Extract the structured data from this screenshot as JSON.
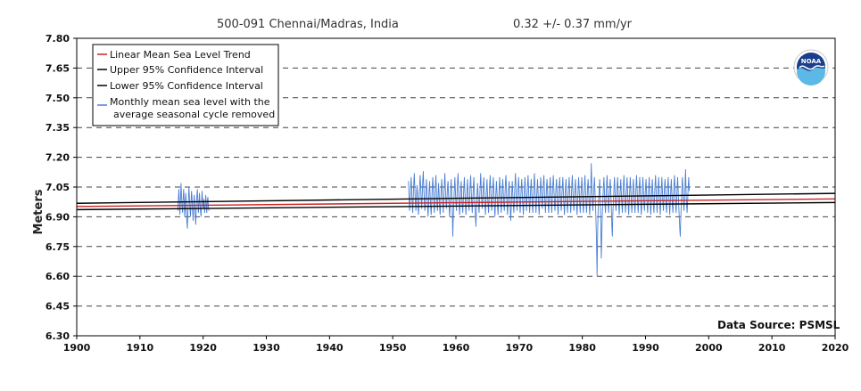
{
  "chart_data": {
    "type": "line",
    "title": "500-091 Chennai/Madras, India",
    "trend_label": "0.32 +/-  0.37 mm/yr",
    "ylabel": "Meters",
    "xlabel": "",
    "xlim": [
      1900,
      2020
    ],
    "ylim": [
      6.3,
      7.8
    ],
    "x_ticks": [
      "1900",
      "1910",
      "1920",
      "1930",
      "1940",
      "1950",
      "1960",
      "1970",
      "1980",
      "1990",
      "2000",
      "2010",
      "2020"
    ],
    "y_ticks": [
      "7.80",
      "7.65",
      "7.50",
      "7.35",
      "7.20",
      "7.05",
      "6.90",
      "6.75",
      "6.60",
      "6.45",
      "6.30"
    ],
    "grid": "dashed horizontal",
    "legend_position": "top-left",
    "data_source": "Data Source: PSMSL",
    "logo_text": "NOAA",
    "series": [
      {
        "name": "Linear Mean Sea Level Trend",
        "color": "#cc2222",
        "x": [
          1900,
          2020
        ],
        "y": [
          6.952,
          6.99
        ]
      },
      {
        "name": "Upper 95% Confidence Interval",
        "color": "#000000",
        "x": [
          1900,
          2020
        ],
        "y": [
          6.968,
          7.018
        ]
      },
      {
        "name": "Lower 95% Confidence Interval",
        "color": "#000000",
        "x": [
          1900,
          2020
        ],
        "y": [
          6.936,
          6.972
        ]
      },
      {
        "name": "Monthly mean sea level with the",
        "name_line2": "average seasonal cycle removed",
        "color": "#4a7fd4",
        "segments": [
          {
            "start": 1916.0,
            "values": [
              6.93,
              6.99,
              7.04,
              6.97,
              6.91,
              6.98,
              7.07,
              7.01,
              6.95,
              6.92,
              6.99,
              7.04,
              6.98,
              6.9,
              6.95,
              7.02,
              6.97,
              6.88,
              6.84,
              6.92,
              6.98,
              7.05,
              7.0,
              6.94,
              6.9,
              6.97,
              7.03,
              6.99,
              6.93,
              6.88,
              6.95,
              7.01,
              6.97,
              6.91,
              6.86,
              6.94,
              7.0,
              7.04,
              6.98,
              6.92,
              6.96,
              7.02,
              6.97,
              6.93,
              6.9,
              6.97,
              7.03,
              6.98,
              6.94,
              6.99,
              6.95,
              6.92,
              6.97,
              7.01,
              6.96,
              6.92,
              6.98,
              7.0,
              6.95,
              6.93
            ]
          },
          {
            "start": 1952.5,
            "values": [
              7.08,
              7.0,
              6.93,
              6.98,
              7.05,
              7.1,
              7.03,
              6.96,
              6.92,
              7.0,
              7.07,
              7.12,
              7.04,
              6.97,
              6.93,
              6.99,
              7.06,
              7.02,
              6.95,
              6.91,
              6.98,
              7.05,
              7.11,
              7.06,
              6.99,
              6.94,
              7.0,
              7.08,
              7.13,
              7.05,
              6.98,
              6.93,
              6.97,
              7.04,
              7.09,
              7.02,
              6.96,
              6.9,
              6.96,
              7.03,
              7.08,
              7.01,
              6.95,
              6.91,
              6.97,
              7.05,
              7.1,
              7.04,
              6.97,
              6.92,
              6.98,
              7.06,
              7.11,
              7.03,
              6.96,
              6.93,
              7.0,
              7.07,
              7.02,
              6.95,
              6.91,
              6.97,
              7.04,
              7.09,
              7.03,
              6.97,
              6.92,
              6.99,
              7.06,
              7.12,
              7.05,
              6.98,
              6.94,
              6.99,
              7.05,
              7.08,
              7.01,
              6.95,
              6.9,
              6.96,
              7.03,
              7.09,
              7.02,
              6.96,
              6.8,
              6.9,
              6.97,
              7.04,
              7.1,
              7.03,
              6.97,
              6.93,
              7.0,
              7.07,
              7.12,
              7.04,
              6.97,
              6.91,
              6.96,
              7.03,
              7.08,
              7.01,
              6.95,
              6.92,
              6.98,
              7.05,
              7.1,
              7.03,
              6.96,
              6.91,
              6.97,
              7.04,
              7.09,
              7.02,
              6.96,
              6.93,
              6.99,
              7.06,
              7.11,
              7.04,
              6.97,
              6.92,
              6.98,
              7.05,
              7.1,
              7.03,
              6.96,
              6.9,
              6.85,
              6.94,
              7.01,
              7.07,
              7.02,
              6.96,
              6.92,
              6.98,
              7.05,
              7.12,
              7.05,
              6.98,
              6.94,
              6.99,
              7.06,
              7.1,
              7.02,
              6.96,
              6.91,
              6.97,
              7.04,
              7.09,
              7.02,
              6.96,
              6.92,
              6.99,
              7.06,
              7.11,
              7.04,
              6.97,
              6.93,
              6.98,
              7.05,
              7.1,
              7.03,
              6.96,
              6.9,
              6.96,
              7.03,
              7.08,
              7.02,
              6.95,
              6.91,
              6.97,
              7.04,
              7.1,
              7.04,
              6.97,
              6.92,
              6.98,
              7.05,
              7.09,
              7.02,
              6.96,
              6.93,
              7.0,
              7.07,
              7.11,
              7.03,
              6.96,
              6.91,
              6.97,
              7.04,
              7.08,
              7.01,
              6.95,
              6.88,
              6.94,
              7.02,
              7.08,
              7.02,
              6.96,
              6.92,
              6.99,
              7.06,
              7.12,
              7.05,
              6.98,
              6.93,
              6.99,
              7.05,
              7.1,
              7.03,
              6.97,
              6.92,
              6.98,
              7.05,
              7.09,
              7.02,
              6.96,
              6.91,
              6.97,
              7.04,
              7.1,
              7.04,
              6.98,
              6.93,
              6.99,
              7.06,
              7.11,
              7.04,
              6.97,
              6.92,
              6.98,
              7.05,
              7.09,
              7.02,
              6.96,
              6.92,
              6.99,
              7.06,
              7.12,
              7.05,
              6.97,
              6.92,
              6.98,
              7.04,
              7.09,
              7.02,
              6.96,
              6.91,
              6.97,
              7.04,
              7.1,
              7.04,
              6.98,
              6.94,
              7.0,
              7.07,
              7.11,
              7.04,
              6.97,
              6.92,
              6.98,
              7.05,
              7.09,
              7.03,
              6.96,
              6.92,
              6.98,
              7.05,
              7.1,
              7.04,
              6.97,
              6.92,
              6.99,
              7.06,
              7.11,
              7.04,
              6.98,
              6.93,
              6.98,
              7.05,
              7.09,
              7.03,
              6.96,
              6.91,
              6.97,
              7.04,
              7.1,
              7.04,
              6.97,
              6.93,
              6.99,
              7.05,
              7.1,
              7.03,
              6.96,
              6.91,
              6.97,
              7.05,
              7.09,
              7.02,
              6.96,
              6.92,
              6.99,
              7.05,
              7.1,
              7.03,
              6.97,
              6.92,
              6.98,
              7.06,
              7.11,
              7.04,
              6.97,
              6.93,
              6.99,
              7.05,
              7.09,
              7.02,
              6.96,
              6.91,
              6.97,
              7.04,
              7.1,
              7.04,
              6.97,
              6.92,
              6.98,
              7.05,
              7.1,
              7.03,
              6.96,
              6.92,
              6.99,
              7.06,
              7.11,
              7.04,
              6.97,
              6.92,
              6.98,
              7.05,
              7.09,
              7.03,
              6.96,
              6.91,
              6.97,
              7.04,
              7.17,
              7.06,
              6.98,
              6.93,
              6.99,
              7.05,
              7.1,
              7.03,
              6.96,
              6.88,
              6.77,
              6.6,
              6.82,
              6.93,
              6.99,
              7.04,
              7.09,
              6.98,
              6.88,
              6.69,
              6.8,
              6.92,
              6.98,
              7.05,
              7.1,
              7.03,
              6.96,
              6.92,
              6.99,
              7.06,
              7.11,
              7.04,
              6.97,
              6.92,
              6.98,
              7.05,
              7.09,
              7.03,
              6.96,
              6.86,
              6.8,
              6.92,
              6.98,
              7.04,
              7.1,
              7.04,
              6.97,
              6.93,
              6.99,
              7.05,
              7.1,
              7.03,
              6.96,
              6.91,
              6.97,
              7.04,
              7.09,
              7.02,
              6.96,
              6.92,
              6.99,
              7.06,
              7.11,
              7.04,
              6.97,
              6.92,
              6.98,
              7.05,
              7.1,
              7.03,
              6.96,
              6.91,
              6.97,
              7.04,
              7.1,
              7.04,
              6.97,
              6.92,
              6.98,
              7.05,
              7.09,
              7.03,
              6.96,
              6.92,
              6.99,
              7.06,
              7.11,
              7.04,
              6.97,
              6.92,
              6.98,
              7.05,
              7.1,
              7.03,
              6.96,
              6.91,
              6.97,
              7.04,
              7.1,
              7.04,
              6.97,
              6.93,
              6.99,
              7.05,
              7.09,
              7.02,
              6.96,
              6.92,
              6.98,
              7.05,
              7.1,
              7.03,
              6.96,
              6.91,
              6.97,
              7.04,
              7.09,
              7.02,
              6.96,
              6.92,
              6.99,
              7.06,
              7.11,
              7.04,
              6.97,
              6.92,
              6.98,
              7.05,
              7.1,
              7.03,
              6.96,
              6.91,
              6.97,
              7.04,
              7.1,
              7.04,
              6.97,
              6.93,
              6.99,
              7.05,
              7.09,
              7.03,
              6.96,
              6.92,
              6.98,
              7.05,
              7.1,
              7.03,
              6.96,
              6.91,
              6.97,
              7.04,
              7.09,
              7.02,
              6.96,
              6.92,
              6.99,
              7.06,
              7.11,
              7.04,
              6.97,
              6.92,
              6.98,
              7.05,
              7.1,
              7.03,
              6.96,
              6.9,
              6.84,
              6.8,
              6.9,
              6.97,
              7.04,
              7.1,
              7.04,
              6.97,
              6.93,
              6.99,
              7.05,
              7.14,
              7.03,
              6.96,
              6.92,
              6.98,
              7.05,
              7.1,
              7.03
            ]
          }
        ]
      }
    ]
  }
}
